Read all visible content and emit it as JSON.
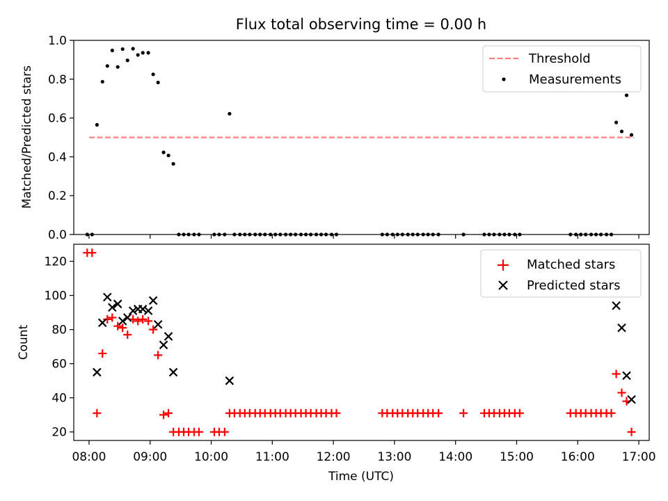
{
  "chart_data": [
    {
      "type": "scatter",
      "title": "Flux total observing time = 0.00 h",
      "xlabel": "",
      "ylabel": "Matched/Predicted stars",
      "xlim": [
        7.75,
        17.17
      ],
      "ylim": [
        0,
        1.0
      ],
      "yticks": [
        0.0,
        0.2,
        0.4,
        0.6,
        0.8,
        1.0
      ],
      "ytick_labels": [
        "0.0",
        "0.2",
        "0.4",
        "0.6",
        "0.8",
        "1.0"
      ],
      "legend": {
        "position": "top-right",
        "entries": [
          "Threshold",
          "Measurements"
        ]
      },
      "threshold": {
        "name": "Threshold",
        "value": 0.5,
        "x_range": [
          8.0,
          16.92
        ],
        "color": "#ff7f7f"
      },
      "series": [
        {
          "name": "Measurements",
          "color": "#000000",
          "x": [
            7.97,
            8.05,
            8.13,
            8.22,
            8.3,
            8.38,
            8.47,
            8.55,
            8.63,
            8.72,
            8.8,
            8.88,
            8.97,
            9.05,
            9.13,
            9.22,
            9.3,
            9.38,
            9.47,
            9.55,
            9.63,
            9.72,
            9.8,
            10.05,
            10.13,
            10.22,
            10.3,
            10.38,
            10.47,
            10.55,
            10.63,
            10.72,
            10.8,
            10.88,
            10.97,
            11.05,
            11.13,
            11.22,
            11.3,
            11.38,
            11.47,
            11.55,
            11.63,
            11.72,
            11.8,
            11.88,
            11.97,
            12.05,
            12.8,
            12.88,
            12.97,
            13.05,
            13.13,
            13.22,
            13.3,
            13.38,
            13.47,
            13.55,
            13.63,
            13.72,
            14.13,
            14.47,
            14.55,
            14.63,
            14.72,
            14.8,
            14.88,
            14.97,
            15.05,
            15.88,
            15.97,
            16.05,
            16.13,
            16.22,
            16.3,
            16.38,
            16.47,
            16.55,
            16.63,
            16.72,
            16.8,
            16.88
          ],
          "y": [
            0,
            0,
            0.565,
            0.787,
            0.868,
            0.948,
            0.863,
            0.955,
            0.897,
            0.957,
            0.925,
            0.936,
            0.936,
            0.825,
            0.783,
            0.423,
            0.407,
            0.364,
            0,
            0,
            0,
            0,
            0,
            0,
            0,
            0,
            0.622,
            0,
            0,
            0,
            0,
            0,
            0,
            0,
            0,
            0,
            0,
            0,
            0,
            0,
            0,
            0,
            0,
            0,
            0,
            0,
            0,
            0,
            0,
            0,
            0,
            0,
            0,
            0,
            0,
            0,
            0,
            0,
            0,
            0,
            0,
            0,
            0,
            0,
            0,
            0,
            0,
            0,
            0,
            0,
            0,
            0,
            0,
            0,
            0,
            0,
            0,
            0,
            0.577,
            0.531,
            0.717,
            0.513
          ]
        }
      ]
    },
    {
      "type": "scatter",
      "title": "",
      "xlabel": "Time (UTC)",
      "ylabel": "Count",
      "xlim": [
        7.75,
        17.17
      ],
      "ylim": [
        15,
        130
      ],
      "yticks": [
        20,
        40,
        60,
        80,
        100,
        120
      ],
      "ytick_labels": [
        "20",
        "40",
        "60",
        "80",
        "100",
        "120"
      ],
      "xticks": [
        8,
        9,
        10,
        11,
        12,
        13,
        14,
        15,
        16,
        17
      ],
      "xtick_labels": [
        "08:00",
        "09:00",
        "10:00",
        "11:00",
        "12:00",
        "13:00",
        "14:00",
        "15:00",
        "16:00",
        "17:00"
      ],
      "legend": {
        "position": "top-right",
        "entries": [
          "Matched stars",
          "Predicted stars"
        ]
      },
      "series": [
        {
          "name": "Matched stars",
          "marker": "+",
          "color": "#ff0000",
          "x": [
            7.97,
            8.05,
            8.13,
            8.22,
            8.3,
            8.38,
            8.47,
            8.55,
            8.63,
            8.72,
            8.8,
            8.88,
            8.97,
            9.05,
            9.13,
            9.22,
            9.3,
            9.38,
            9.47,
            9.55,
            9.63,
            9.72,
            9.8,
            10.05,
            10.13,
            10.22,
            10.3,
            10.38,
            10.47,
            10.55,
            10.63,
            10.72,
            10.8,
            10.88,
            10.97,
            11.05,
            11.13,
            11.22,
            11.3,
            11.38,
            11.47,
            11.55,
            11.63,
            11.72,
            11.8,
            11.88,
            11.97,
            12.05,
            12.8,
            12.88,
            12.97,
            13.05,
            13.13,
            13.22,
            13.3,
            13.38,
            13.47,
            13.55,
            13.63,
            13.72,
            14.13,
            14.47,
            14.55,
            14.63,
            14.72,
            14.8,
            14.88,
            14.97,
            15.05,
            15.88,
            15.97,
            16.05,
            16.13,
            16.22,
            16.3,
            16.38,
            16.47,
            16.55,
            16.63,
            16.72,
            16.8,
            16.88
          ],
          "y": [
            125,
            125,
            31,
            66,
            86,
            87,
            82,
            81,
            77,
            86,
            85,
            86,
            85,
            80,
            65,
            30,
            31,
            20,
            20,
            20,
            20,
            20,
            20,
            20,
            20,
            20,
            31,
            31,
            31,
            31,
            31,
            31,
            31,
            31,
            31,
            31,
            31,
            31,
            31,
            31,
            31,
            31,
            31,
            31,
            31,
            31,
            31,
            31,
            31,
            31,
            31,
            31,
            31,
            31,
            31,
            31,
            31,
            31,
            31,
            31,
            31,
            31,
            31,
            31,
            31,
            31,
            31,
            31,
            31,
            31,
            31,
            31,
            31,
            31,
            31,
            31,
            31,
            31,
            54,
            43,
            38,
            20
          ]
        },
        {
          "name": "Predicted stars",
          "marker": "x",
          "color": "#000000",
          "x": [
            8.13,
            8.22,
            8.3,
            8.38,
            8.47,
            8.55,
            8.63,
            8.72,
            8.8,
            8.88,
            8.97,
            9.05,
            9.13,
            9.22,
            9.3,
            9.38,
            10.3,
            16.63,
            16.72,
            16.8,
            16.88
          ],
          "y": [
            55,
            84,
            99,
            93,
            95,
            85,
            87,
            91,
            92,
            92,
            91,
            97,
            83,
            71,
            76,
            55,
            50,
            94,
            81,
            53,
            39
          ]
        }
      ]
    }
  ]
}
